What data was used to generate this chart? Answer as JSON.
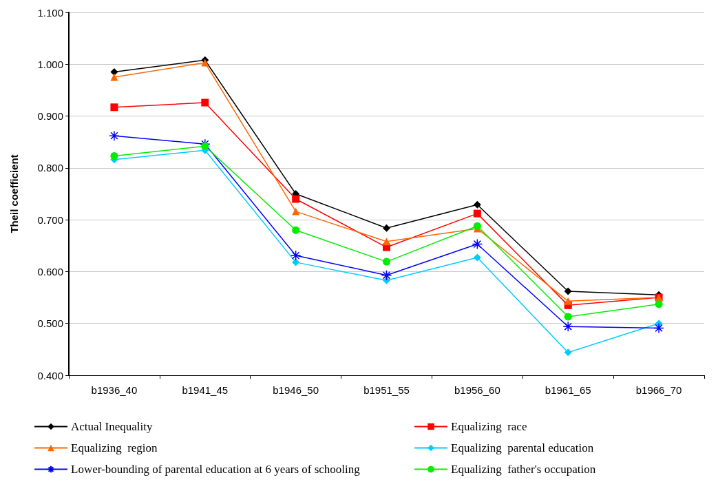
{
  "chart_data": {
    "type": "line",
    "ylabel": "Theil coefficient",
    "categories": [
      "b1936_40",
      "b1941_45",
      "b1946_50",
      "b1951_55",
      "b1956_60",
      "b1961_65",
      "b1966_70"
    ],
    "ylim": [
      0.4,
      1.1
    ],
    "yticks": [
      {
        "value": 0.4,
        "label": "0.400"
      },
      {
        "value": 0.5,
        "label": "0.500"
      },
      {
        "value": 0.6,
        "label": "0.600"
      },
      {
        "value": 0.7,
        "label": "0.700"
      },
      {
        "value": 0.8,
        "label": "0.800"
      },
      {
        "value": 0.9,
        "label": "0.900"
      },
      {
        "value": 1.0,
        "label": "1.000"
      },
      {
        "value": 1.1,
        "label": "1.100"
      }
    ],
    "grid": "y",
    "legend": "bottom",
    "line_style": "solid",
    "series": [
      {
        "name": "Actual Inequality",
        "color": "#000000",
        "marker": "diamond",
        "values": [
          0.985,
          1.008,
          0.75,
          0.684,
          0.729,
          0.562,
          0.555
        ]
      },
      {
        "name": "Equalizing  race",
        "color": "#ff0000",
        "marker": "square",
        "values": [
          0.917,
          0.926,
          0.74,
          0.647,
          0.712,
          0.535,
          0.55
        ]
      },
      {
        "name": "Equalizing  region",
        "color": "#ff6600",
        "marker": "triangle",
        "values": [
          0.975,
          1.003,
          0.716,
          0.658,
          0.683,
          0.543,
          0.55
        ]
      },
      {
        "name": "Equalizing  parental education",
        "color": "#00ccff",
        "marker": "diamond",
        "values": [
          0.816,
          0.834,
          0.618,
          0.583,
          0.627,
          0.444,
          0.5
        ]
      },
      {
        "name": "Lower-bounding of parental education at 6 years of schooling",
        "color": "#0000ff",
        "marker": "cross",
        "values": [
          0.862,
          0.846,
          0.631,
          0.593,
          0.653,
          0.494,
          0.491
        ]
      },
      {
        "name": "Equalizing  father's occupation",
        "color": "#00ee00",
        "marker": "circle",
        "values": [
          0.823,
          0.842,
          0.68,
          0.619,
          0.688,
          0.513,
          0.537
        ]
      }
    ]
  }
}
